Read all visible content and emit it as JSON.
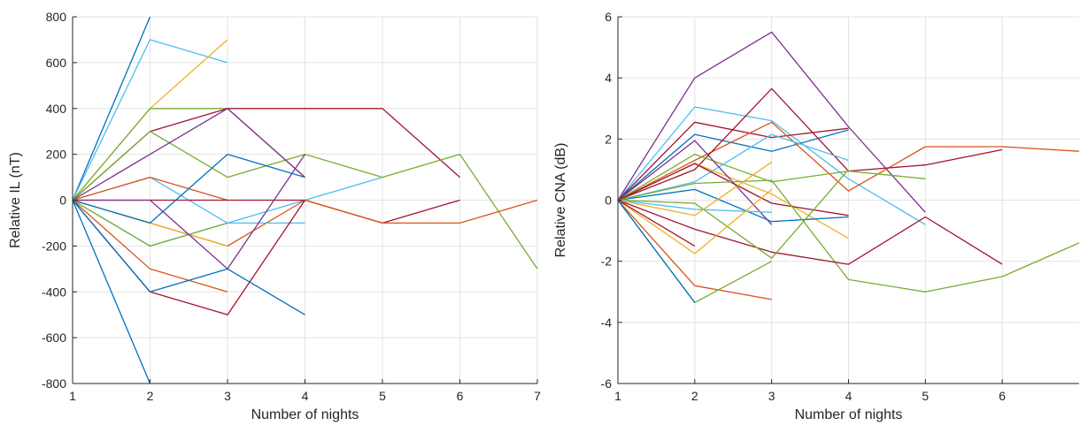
{
  "palette": [
    "#0072BD",
    "#D95319",
    "#EDB120",
    "#7E2F8E",
    "#77AC30",
    "#4DBEEE",
    "#A2142F"
  ],
  "chart_data": [
    {
      "type": "line",
      "xlabel": "Number of nights",
      "ylabel": "Relative IL (nT)",
      "xlim": [
        1,
        7
      ],
      "ylim": [
        -800,
        800
      ],
      "xticks": [
        1,
        2,
        3,
        4,
        5,
        6,
        7
      ],
      "yticks": [
        -800,
        -600,
        -400,
        -200,
        0,
        200,
        400,
        600,
        800
      ],
      "grid": true,
      "series": [
        {
          "color": "#0072BD",
          "x": [
            1,
            2
          ],
          "y": [
            0,
            800
          ]
        },
        {
          "color": "#4DBEEE",
          "x": [
            1,
            2,
            3
          ],
          "y": [
            0,
            700,
            600
          ]
        },
        {
          "color": "#EDB120",
          "x": [
            1,
            2,
            3
          ],
          "y": [
            0,
            400,
            700
          ]
        },
        {
          "color": "#77AC30",
          "x": [
            1,
            2,
            3,
            4
          ],
          "y": [
            0,
            400,
            400,
            100
          ]
        },
        {
          "color": "#A2142F",
          "x": [
            1,
            2,
            3,
            4,
            5,
            6
          ],
          "y": [
            0,
            300,
            400,
            400,
            400,
            100
          ]
        },
        {
          "color": "#77AC30",
          "x": [
            1,
            2,
            3,
            4,
            5,
            6,
            7
          ],
          "y": [
            0,
            300,
            100,
            200,
            100,
            200,
            -300
          ]
        },
        {
          "color": "#7E2F8E",
          "x": [
            1,
            2,
            3,
            4
          ],
          "y": [
            0,
            200,
            400,
            100
          ]
        },
        {
          "color": "#4DBEEE",
          "x": [
            1,
            2,
            3,
            4,
            5
          ],
          "y": [
            0,
            100,
            -100,
            0,
            100
          ]
        },
        {
          "color": "#D95319",
          "x": [
            1,
            2,
            3
          ],
          "y": [
            0,
            100,
            0
          ]
        },
        {
          "color": "#A2142F",
          "x": [
            1,
            2,
            3,
            4,
            5,
            6
          ],
          "y": [
            0,
            0,
            0,
            0,
            -100,
            0
          ]
        },
        {
          "color": "#D95319",
          "x": [
            1,
            2,
            3,
            4,
            5,
            6,
            7
          ],
          "y": [
            0,
            -100,
            -200,
            0,
            -100,
            -100,
            0
          ]
        },
        {
          "color": "#EDB120",
          "x": [
            1,
            2,
            3
          ],
          "y": [
            0,
            -100,
            -200
          ]
        },
        {
          "color": "#0072BD",
          "x": [
            1,
            2,
            3,
            4
          ],
          "y": [
            0,
            -100,
            200,
            100
          ]
        },
        {
          "color": "#4DBEEE",
          "x": [
            1,
            2,
            3,
            4
          ],
          "y": [
            0,
            -200,
            -100,
            -100
          ]
        },
        {
          "color": "#77AC30",
          "x": [
            1,
            2,
            3
          ],
          "y": [
            0,
            -200,
            -100
          ]
        },
        {
          "color": "#7E2F8E",
          "x": [
            1,
            2,
            3,
            4
          ],
          "y": [
            0,
            0,
            -300,
            200
          ]
        },
        {
          "color": "#D95319",
          "x": [
            1,
            2,
            3
          ],
          "y": [
            0,
            -300,
            -400
          ]
        },
        {
          "color": "#A2142F",
          "x": [
            1,
            2,
            3,
            4
          ],
          "y": [
            0,
            -400,
            -500,
            0
          ]
        },
        {
          "color": "#0072BD",
          "x": [
            1,
            2,
            3,
            4
          ],
          "y": [
            0,
            -400,
            -300,
            -500
          ]
        },
        {
          "color": "#0072BD",
          "x": [
            1,
            2
          ],
          "y": [
            0,
            -800
          ]
        }
      ]
    },
    {
      "type": "line",
      "xlabel": "Number of nights",
      "ylabel": "Relative CNA (dB)",
      "xlim": [
        1,
        7
      ],
      "ylim": [
        -6,
        6
      ],
      "xticks": [
        1,
        2,
        3,
        4,
        5,
        6
      ],
      "yticks": [
        -6,
        -4,
        -2,
        0,
        2,
        4,
        6
      ],
      "grid": true,
      "series": [
        {
          "color": "#7E2F8E",
          "x": [
            1,
            2,
            3,
            4,
            5
          ],
          "y": [
            0,
            4.0,
            5.5,
            2.4,
            -0.4
          ]
        },
        {
          "color": "#4DBEEE",
          "x": [
            1,
            2,
            3,
            4,
            5
          ],
          "y": [
            0,
            3.05,
            2.6,
            0.7,
            -0.8
          ]
        },
        {
          "color": "#A2142F",
          "x": [
            1,
            2,
            3,
            4
          ],
          "y": [
            0,
            2.55,
            2.05,
            2.35
          ]
        },
        {
          "color": "#0072BD",
          "x": [
            1,
            2,
            3,
            4
          ],
          "y": [
            0,
            2.15,
            1.6,
            2.3
          ]
        },
        {
          "color": "#D95319",
          "x": [
            1,
            2,
            3,
            4,
            5,
            6,
            7
          ],
          "y": [
            0,
            1.3,
            2.55,
            0.3,
            1.75,
            1.75,
            1.6
          ]
        },
        {
          "color": "#A2142F",
          "x": [
            1,
            2,
            3,
            4,
            5,
            6
          ],
          "y": [
            0,
            1.0,
            3.65,
            0.95,
            1.15,
            1.65
          ]
        },
        {
          "color": "#77AC30",
          "x": [
            1,
            2,
            3,
            4,
            5
          ],
          "y": [
            0,
            1.5,
            0.6,
            0.95,
            0.7
          ]
        },
        {
          "color": "#4DBEEE",
          "x": [
            1,
            2,
            3,
            4
          ],
          "y": [
            0,
            0.6,
            2.15,
            1.3
          ]
        },
        {
          "color": "#EDB120",
          "x": [
            1,
            2,
            3,
            4
          ],
          "y": [
            0,
            1.2,
            0.2,
            -1.25
          ]
        },
        {
          "color": "#7E2F8E",
          "x": [
            1,
            2,
            3
          ],
          "y": [
            0,
            1.95,
            -0.8
          ]
        },
        {
          "color": "#A2142F",
          "x": [
            1,
            2,
            3,
            4
          ],
          "y": [
            0,
            1.2,
            -0.1,
            -0.5
          ]
        },
        {
          "color": "#0072BD",
          "x": [
            1,
            2,
            3,
            4
          ],
          "y": [
            0,
            0.35,
            -0.7,
            -0.55
          ]
        },
        {
          "color": "#77AC30",
          "x": [
            1,
            2,
            3,
            4,
            5,
            6,
            7
          ],
          "y": [
            0,
            0.55,
            0.65,
            -2.6,
            -3.0,
            -2.5,
            -1.4
          ]
        },
        {
          "color": "#A2142F",
          "x": [
            1,
            2,
            3,
            4,
            5,
            6
          ],
          "y": [
            0,
            -0.95,
            -1.7,
            -2.1,
            -0.55,
            -2.1
          ]
        },
        {
          "color": "#77AC30",
          "x": [
            1,
            2,
            3,
            4
          ],
          "y": [
            0,
            -0.1,
            -1.9,
            1.0
          ]
        },
        {
          "color": "#4DBEEE",
          "x": [
            1,
            2,
            3
          ],
          "y": [
            0,
            -0.3,
            -0.4
          ]
        },
        {
          "color": "#EDB120",
          "x": [
            1,
            2,
            3
          ],
          "y": [
            0,
            -0.5,
            1.25
          ]
        },
        {
          "color": "#EDB120",
          "x": [
            1,
            2,
            3
          ],
          "y": [
            0,
            -1.75,
            0.35
          ]
        },
        {
          "color": "#A2142F",
          "x": [
            1,
            2
          ],
          "y": [
            0,
            -1.5
          ]
        },
        {
          "color": "#D95319",
          "x": [
            1,
            2,
            3
          ],
          "y": [
            0,
            -2.8,
            -3.25
          ]
        },
        {
          "color": "#77AC30",
          "x": [
            1,
            2,
            3
          ],
          "y": [
            0,
            -3.35,
            -2.0
          ]
        },
        {
          "color": "#0072BD",
          "x": [
            1,
            2
          ],
          "y": [
            0,
            -3.35
          ]
        }
      ]
    }
  ]
}
